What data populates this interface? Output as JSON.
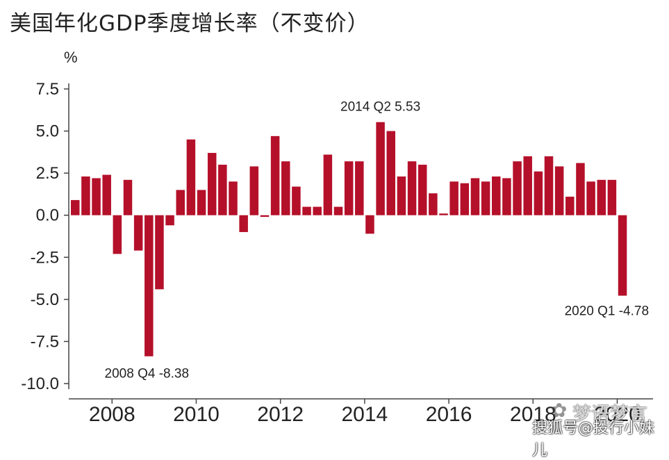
{
  "title": "美国年化GDP季度增长率（不变价）",
  "watermark": {
    "logo_icon": "wechat-icon",
    "text": "梦语梦言",
    "credit": "搜狐号@投行小妹儿"
  },
  "chart_data": {
    "type": "bar",
    "title": "美国年化GDP季度增长率（不变价）",
    "ylabel": "%",
    "xlabel": "",
    "ylim": [
      -10.0,
      7.5
    ],
    "yticks": [
      "7.5",
      "5.0",
      "2.5",
      "0.0",
      "-2.5",
      "-5.0",
      "-7.5",
      "-10.0"
    ],
    "ytick_values": [
      7.5,
      5.0,
      2.5,
      0.0,
      -2.5,
      -5.0,
      -7.5,
      -10.0
    ],
    "xticks": [
      "2008",
      "2010",
      "2012",
      "2014",
      "2016",
      "2018",
      "2020"
    ],
    "grid": false,
    "bar_color": "#b5102a",
    "categories": [
      "2007 Q1",
      "2007 Q2",
      "2007 Q3",
      "2007 Q4",
      "2008 Q1",
      "2008 Q2",
      "2008 Q3",
      "2008 Q4",
      "2009 Q1",
      "2009 Q2",
      "2009 Q3",
      "2009 Q4",
      "2010 Q1",
      "2010 Q2",
      "2010 Q3",
      "2010 Q4",
      "2011 Q1",
      "2011 Q2",
      "2011 Q3",
      "2011 Q4",
      "2012 Q1",
      "2012 Q2",
      "2012 Q3",
      "2012 Q4",
      "2013 Q1",
      "2013 Q2",
      "2013 Q3",
      "2013 Q4",
      "2014 Q1",
      "2014 Q2",
      "2014 Q3",
      "2014 Q4",
      "2015 Q1",
      "2015 Q2",
      "2015 Q3",
      "2015 Q4",
      "2016 Q1",
      "2016 Q2",
      "2016 Q3",
      "2016 Q4",
      "2017 Q1",
      "2017 Q2",
      "2017 Q3",
      "2017 Q4",
      "2018 Q1",
      "2018 Q2",
      "2018 Q3",
      "2018 Q4",
      "2019 Q1",
      "2019 Q2",
      "2019 Q3",
      "2019 Q4",
      "2020 Q1"
    ],
    "values": [
      0.9,
      2.3,
      2.2,
      2.4,
      -2.3,
      2.1,
      -2.1,
      -8.38,
      -4.4,
      -0.6,
      1.5,
      4.5,
      1.5,
      3.7,
      3.0,
      2.0,
      -1.0,
      2.9,
      -0.1,
      4.7,
      3.2,
      1.7,
      0.5,
      0.5,
      3.6,
      0.5,
      3.2,
      3.2,
      -1.1,
      5.53,
      5.0,
      2.3,
      3.2,
      3.0,
      1.3,
      0.1,
      2.0,
      1.9,
      2.2,
      2.0,
      2.3,
      2.2,
      3.2,
      3.5,
      2.6,
      3.5,
      2.9,
      1.1,
      3.1,
      2.0,
      2.1,
      2.1,
      -4.78
    ],
    "annotations": [
      {
        "index": 7,
        "text": "2008 Q4 -8.38"
      },
      {
        "index": 29,
        "text": "2014 Q2 5.53"
      },
      {
        "index": 52,
        "text": "2020 Q1 -4.78"
      }
    ]
  }
}
